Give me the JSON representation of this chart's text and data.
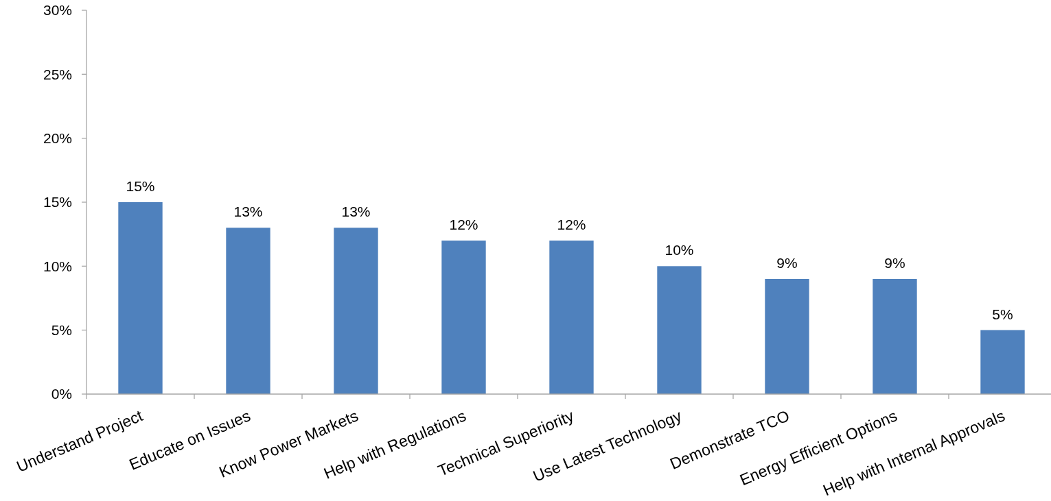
{
  "chart_data": {
    "type": "bar",
    "categories": [
      "Understand Project",
      "Educate on Issues",
      "Know Power Markets",
      "Help with Regulations",
      "Technical Superiority",
      "Use Latest Technology",
      "Demonstrate TCO",
      "Energy Efficient Options",
      "Help with Internal Approvals"
    ],
    "values": [
      15,
      13,
      13,
      12,
      12,
      10,
      9,
      9,
      5
    ],
    "value_labels": [
      "15%",
      "13%",
      "13%",
      "12%",
      "12%",
      "10%",
      "9%",
      "9%",
      "5%"
    ],
    "color": "#4f81bd",
    "ylim": [
      0,
      30
    ],
    "yticks": [
      {
        "value": 0,
        "label": "0%"
      },
      {
        "value": 5,
        "label": "5%"
      },
      {
        "value": 10,
        "label": "10%"
      },
      {
        "value": 15,
        "label": "15%"
      },
      {
        "value": 20,
        "label": "20%"
      },
      {
        "value": 25,
        "label": "25%"
      },
      {
        "value": 30,
        "label": "30%"
      }
    ]
  }
}
